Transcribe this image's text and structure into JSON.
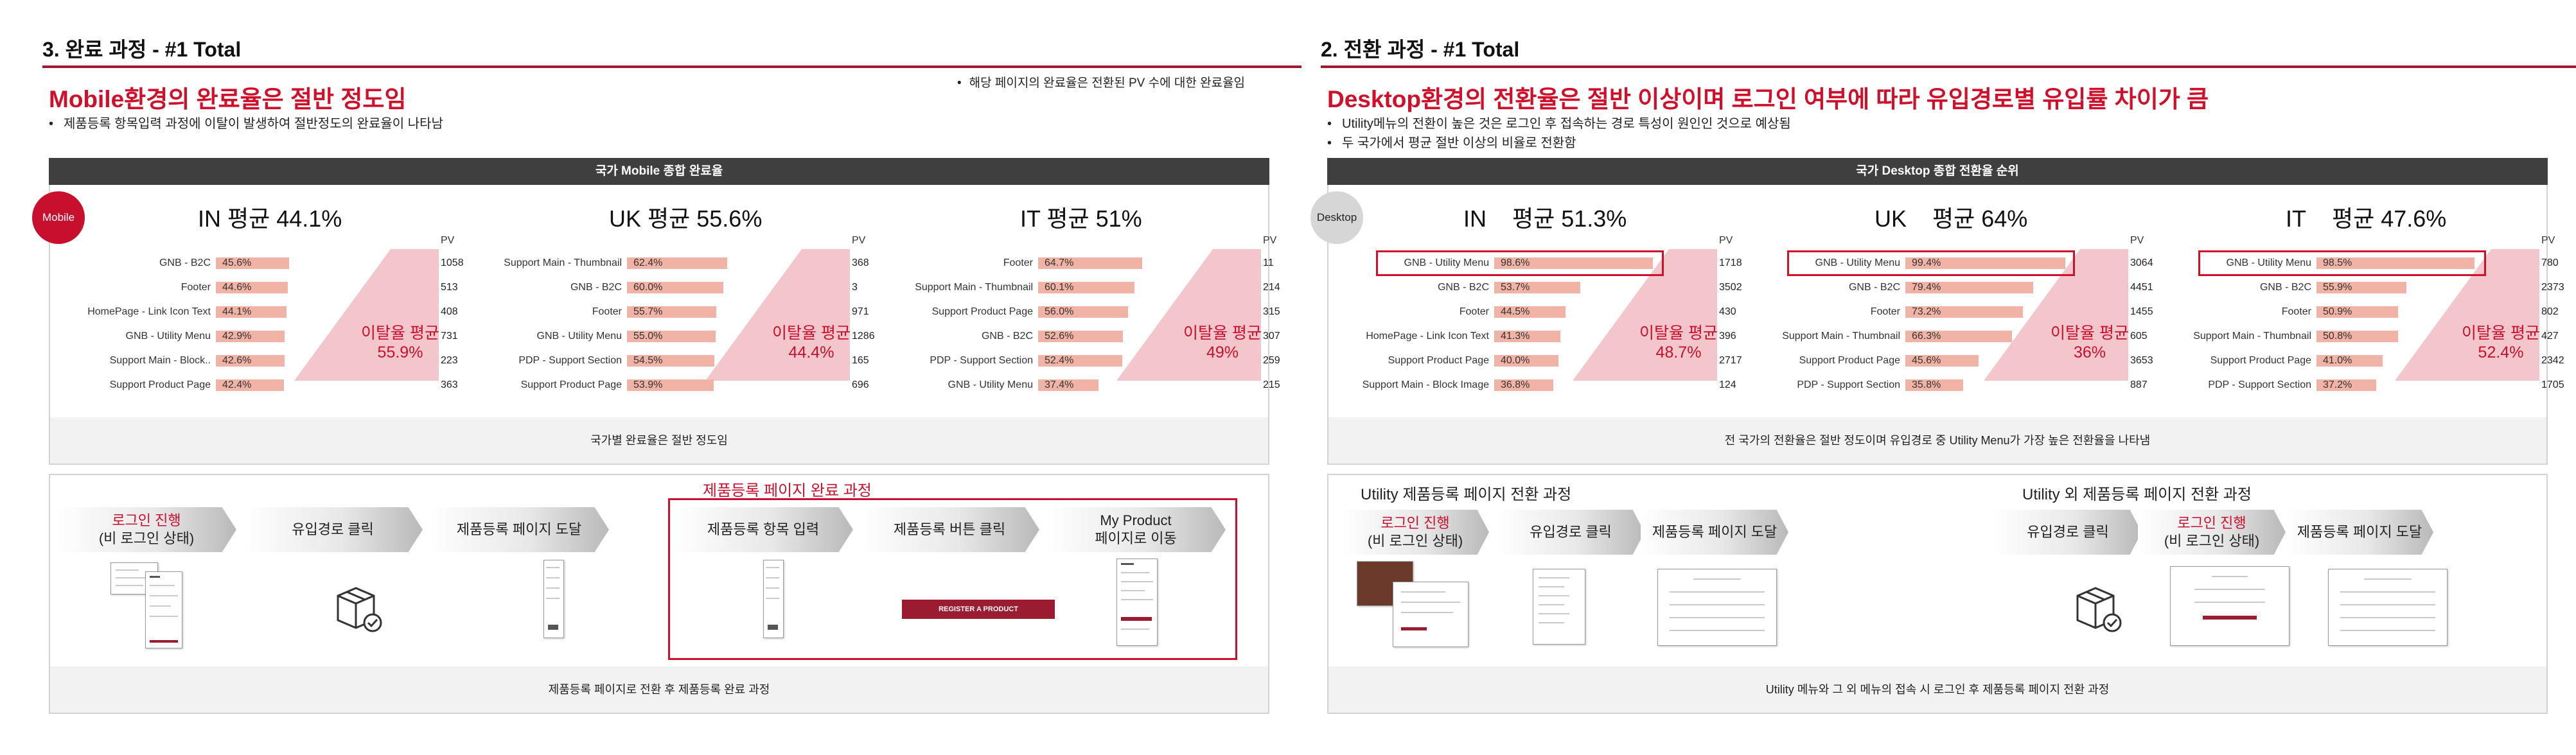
{
  "left": {
    "title": "3. 완료 과정 - #1 Total",
    "headline": "Mobile환경의 완료율은 절반 정도임",
    "bullets": [
      "제품등록 항목입력 과정에 이탈이 발생하여 절반정도의 완료율이 나타남"
    ],
    "note": "해당 페이지의 완료율은 전환된 PV 수에 대한 완료율임",
    "band": "국가 Mobile 종합 완료율",
    "badge": "Mobile",
    "pv_header": "PV",
    "countries": [
      {
        "title": "IN 평균 44.1%",
        "drop_label": "이탈율 평균",
        "drop_value": "55.9%",
        "rows": [
          {
            "label": "GNB - B2C",
            "value": 45.6,
            "text": "45.6%",
            "pv": "1058"
          },
          {
            "label": "Footer",
            "value": 44.6,
            "text": "44.6%",
            "pv": "513"
          },
          {
            "label": "HomePage - Link Icon Text",
            "value": 44.1,
            "text": "44.1%",
            "pv": "408"
          },
          {
            "label": "GNB - Utility Menu",
            "value": 42.9,
            "text": "42.9%",
            "pv": "731"
          },
          {
            "label": "Support Main - Block..",
            "value": 42.6,
            "text": "42.6%",
            "pv": "223"
          },
          {
            "label": "Support Product Page",
            "value": 42.4,
            "text": "42.4%",
            "pv": "363"
          }
        ]
      },
      {
        "title": "UK 평균 55.6%",
        "drop_label": "이탈율 평균",
        "drop_value": "44.4%",
        "rows": [
          {
            "label": "Support Main - Thumbnail",
            "value": 62.4,
            "text": "62.4%",
            "pv": "368"
          },
          {
            "label": "GNB - B2C",
            "value": 60.0,
            "text": "60.0%",
            "pv": "3"
          },
          {
            "label": "Footer",
            "value": 55.7,
            "text": "55.7%",
            "pv": "971"
          },
          {
            "label": "GNB - Utility Menu",
            "value": 55.0,
            "text": "55.0%",
            "pv": "1286"
          },
          {
            "label": "PDP - Support Section",
            "value": 54.5,
            "text": "54.5%",
            "pv": "165"
          },
          {
            "label": "Support Product Page",
            "value": 53.9,
            "text": "53.9%",
            "pv": "696"
          }
        ]
      },
      {
        "title": "IT 평균 51%",
        "drop_label": "이탈율 평균",
        "drop_value": "49%",
        "rows": [
          {
            "label": "Footer",
            "value": 64.7,
            "text": "64.7%",
            "pv": "11"
          },
          {
            "label": "Support Main - Thumbnail",
            "value": 60.1,
            "text": "60.1%",
            "pv": "214"
          },
          {
            "label": "Support Product Page",
            "value": 56.0,
            "text": "56.0%",
            "pv": "315"
          },
          {
            "label": "GNB - B2C",
            "value": 52.6,
            "text": "52.6%",
            "pv": "307"
          },
          {
            "label": "PDP - Support Section",
            "value": 52.4,
            "text": "52.4%",
            "pv": "259"
          },
          {
            "label": "GNB - Utility Menu",
            "value": 37.4,
            "text": "37.4%",
            "pv": "215"
          }
        ]
      }
    ],
    "panel_footer": "국가별 완료율은 절반 정도임",
    "flow_group_label": "제품등록 페이지 완료 과정",
    "flow_steps": [
      {
        "line1": "로그인 진행",
        "line2": "(비 로그인 상태)",
        "red": true
      },
      {
        "line1": "유입경로 클릭",
        "line2": "",
        "red": false
      },
      {
        "line1": "제품등록 페이지 도달",
        "line2": "",
        "red": false
      },
      {
        "line1": "제품등록 항목 입력",
        "line2": "",
        "red": false
      },
      {
        "line1": "제품등록 버튼 클릭",
        "line2": "",
        "red": false
      },
      {
        "line1": "My Product",
        "line2": "페이지로 이동",
        "red": false
      }
    ],
    "register_button": "REGISTER A PRODUCT",
    "flow_footer": "제품등록 페이지로 전환 후 제품등록 완료 과정"
  },
  "right": {
    "title": "2. 전환 과정 - #1 Total",
    "headline": "Desktop환경의 전환율은 절반 이상이며 로그인 여부에 따라 유입경로별 유입률 차이가 큼",
    "bullets": [
      "Utility메뉴의 전환이 높은 것은 로그인 후 접속하는 경로 특성이 원인인 것으로 예상됨",
      "두 국가에서 평균 절반 이상의 비율로 전환함"
    ],
    "band": "국가 Desktop 종합 전환율 순위",
    "badge": "Desktop",
    "pv_header": "PV",
    "countries": [
      {
        "code": "IN",
        "avg": "평균 51.3%",
        "drop_label": "이탈율 평균",
        "drop_value": "48.7%",
        "rows": [
          {
            "label": "GNB - Utility Menu",
            "value": 98.6,
            "text": "98.6%",
            "pv": "1718",
            "highlight": true
          },
          {
            "label": "GNB - B2C",
            "value": 53.7,
            "text": "53.7%",
            "pv": "3502"
          },
          {
            "label": "Footer",
            "value": 44.5,
            "text": "44.5%",
            "pv": "430"
          },
          {
            "label": "HomePage - Link Icon Text",
            "value": 41.3,
            "text": "41.3%",
            "pv": "396"
          },
          {
            "label": "Support Product Page",
            "value": 40.0,
            "text": "40.0%",
            "pv": "2717"
          },
          {
            "label": "Support Main - Block Image",
            "value": 36.8,
            "text": "36.8%",
            "pv": "124"
          }
        ]
      },
      {
        "code": "UK",
        "avg": "평균 64%",
        "drop_label": "이탈율 평균",
        "drop_value": "36%",
        "rows": [
          {
            "label": "GNB - Utility Menu",
            "value": 99.4,
            "text": "99.4%",
            "pv": "3064",
            "highlight": true
          },
          {
            "label": "GNB - B2C",
            "value": 79.4,
            "text": "79.4%",
            "pv": "4451"
          },
          {
            "label": "Footer",
            "value": 73.2,
            "text": "73.2%",
            "pv": "1455"
          },
          {
            "label": "Support Main - Thumbnail",
            "value": 66.3,
            "text": "66.3%",
            "pv": "605"
          },
          {
            "label": "Support Product Page",
            "value": 45.6,
            "text": "45.6%",
            "pv": "3653"
          },
          {
            "label": "PDP - Support Section",
            "value": 35.8,
            "text": "35.8%",
            "pv": "887"
          }
        ]
      },
      {
        "code": "IT",
        "avg": "평균 47.6%",
        "drop_label": "이탈율 평균",
        "drop_value": "52.4%",
        "rows": [
          {
            "label": "GNB - Utility Menu",
            "value": 98.5,
            "text": "98.5%",
            "pv": "780",
            "highlight": true
          },
          {
            "label": "GNB - B2C",
            "value": 55.9,
            "text": "55.9%",
            "pv": "2373"
          },
          {
            "label": "Footer",
            "value": 50.9,
            "text": "50.9%",
            "pv": "802"
          },
          {
            "label": "Support Main - Thumbnail",
            "value": 50.8,
            "text": "50.8%",
            "pv": "427"
          },
          {
            "label": "Support Product Page",
            "value": 41.0,
            "text": "41.0%",
            "pv": "2342"
          },
          {
            "label": "PDP - Support Section",
            "value": 37.2,
            "text": "37.2%",
            "pv": "1705"
          }
        ]
      }
    ],
    "panel_footer": "전 국가의 전환율은 절반 정도이며 유입경로 중 Utility Menu가 가장 높은 전환율을 나타냄",
    "flow_group_a": "Utility 제품등록 페이지 전환 과정",
    "flow_group_b": "Utility 외 제품등록 페이지 전환 과정",
    "flow_steps_a": [
      {
        "line1": "로그인 진행",
        "line2": "(비 로그인 상태)",
        "red": true
      },
      {
        "line1": "유입경로 클릭",
        "line2": "",
        "red": false
      },
      {
        "line1": "제품등록 페이지 도달",
        "line2": "",
        "red": false
      }
    ],
    "flow_steps_b": [
      {
        "line1": "유입경로 클릭",
        "line2": "",
        "red": false
      },
      {
        "line1": "로그인 진행",
        "line2": "(비 로그인 상태)",
        "red": true
      },
      {
        "line1": "제품등록 페이지 도달",
        "line2": "",
        "red": false
      }
    ],
    "flow_footer": "Utility 메뉴와 그 외 메뉴의 접속 시 로그인 후 제품등록 페이지 전환 과정"
  },
  "colors": {
    "accent": "#d0102a",
    "rule": "#9b1b30",
    "bar": "#f1b3a6",
    "drop": "#f3c6cc",
    "band": "#3f3f3f"
  },
  "icons": [
    "package-check-icon",
    "page-thumbnail"
  ]
}
